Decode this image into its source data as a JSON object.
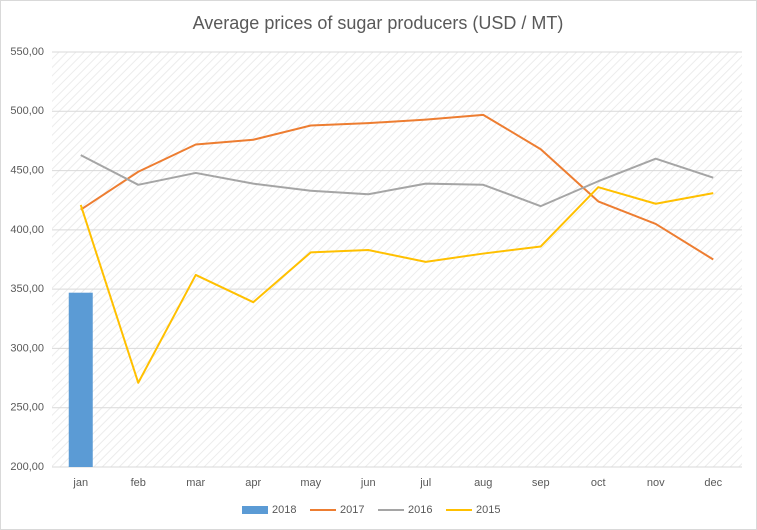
{
  "chart_data": {
    "type": "bar-line",
    "title": "Average prices of sugar producers (USD / MT)",
    "categories": [
      "jan",
      "feb",
      "mar",
      "apr",
      "may",
      "jun",
      "jul",
      "aug",
      "sep",
      "oct",
      "nov",
      "dec"
    ],
    "series": [
      {
        "name": "2018",
        "type": "bar",
        "color": "#5b9bd5",
        "values": [
          347,
          null,
          null,
          null,
          null,
          null,
          null,
          null,
          null,
          null,
          null,
          null
        ]
      },
      {
        "name": "2017",
        "type": "line",
        "color": "#ed7d31",
        "values": [
          417,
          449,
          472,
          476,
          488,
          490,
          493,
          497,
          468,
          424,
          405,
          375
        ]
      },
      {
        "name": "2016",
        "type": "line",
        "color": "#a5a5a5",
        "values": [
          463,
          438,
          448,
          439,
          433,
          430,
          439,
          438,
          420,
          441,
          460,
          444
        ]
      },
      {
        "name": "2015",
        "type": "line",
        "color": "#ffc000",
        "values": [
          421,
          271,
          362,
          339,
          381,
          383,
          373,
          380,
          386,
          436,
          422,
          431
        ]
      }
    ],
    "ylim": [
      200,
      550
    ],
    "yticks": [
      {
        "value": 200,
        "label": "200,00"
      },
      {
        "value": 250,
        "label": "250,00"
      },
      {
        "value": 300,
        "label": "300,00"
      },
      {
        "value": 350,
        "label": "350,00"
      },
      {
        "value": 400,
        "label": "400,00"
      },
      {
        "value": 450,
        "label": "450,00"
      },
      {
        "value": 500,
        "label": "500,00"
      },
      {
        "value": 550,
        "label": "550,00"
      }
    ],
    "grid": true,
    "legend": "bottom"
  }
}
